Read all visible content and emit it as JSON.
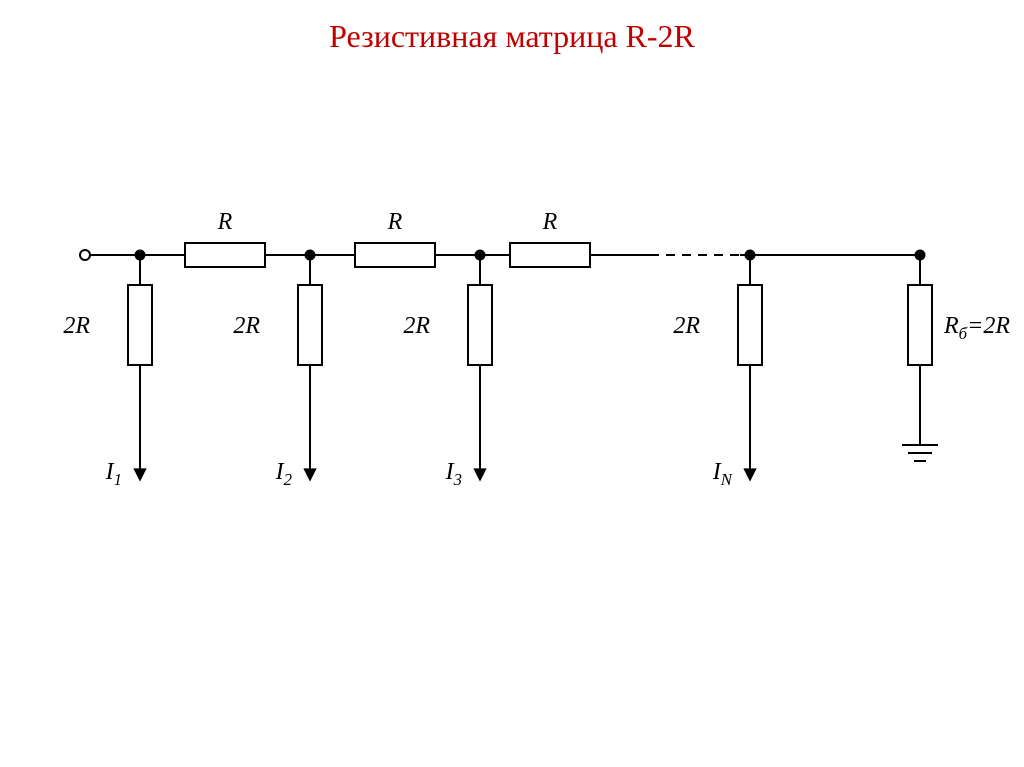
{
  "title": {
    "text": "Резистивная матрица R-2R",
    "color": "#c00000",
    "fontsize": 32
  },
  "diagram": {
    "stroke": "#000000",
    "stroke_width": 2,
    "node_fill": "#000000",
    "node_radius": 4.5,
    "terminal_radius": 5,
    "resistor": {
      "w": 80,
      "h": 24,
      "fill": "#ffffff"
    },
    "horiz_labels": [
      "R",
      "R",
      "R"
    ],
    "vert_labels": [
      "2R",
      "2R",
      "2R",
      "2R"
    ],
    "current_labels": [
      {
        "base": "I",
        "sub": "1"
      },
      {
        "base": "I",
        "sub": "2"
      },
      {
        "base": "I",
        "sub": "3"
      },
      {
        "base": "I",
        "sub": "N"
      }
    ],
    "balance_label": {
      "prefix": "R",
      "sub": "б",
      "eq": "=2R"
    },
    "label_fontsize": 24,
    "dash": "9,7"
  }
}
